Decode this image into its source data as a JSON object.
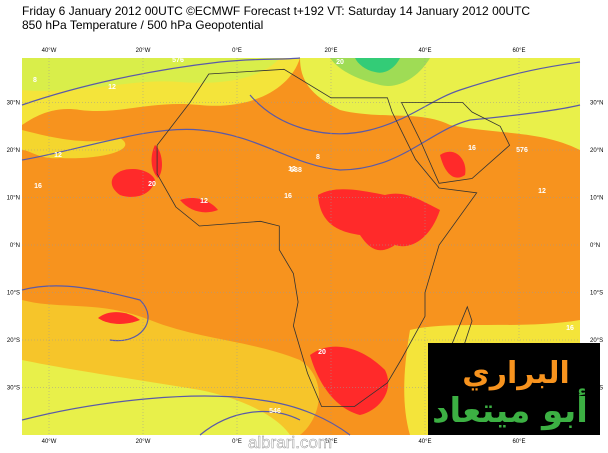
{
  "header": {
    "line1": "Friday 6 January 2012 00UTC ©ECMWF Forecast t+192 VT: Saturday 14 January 2012 00UTC",
    "line2": "850 hPa Temperature / 500 hPa Geopotential"
  },
  "map": {
    "longitudes": [
      "40°W",
      "20°W",
      "0°E",
      "20°E",
      "40°E",
      "60°E"
    ],
    "latitudes": [
      "30°N",
      "20°N",
      "10°N",
      "0°N",
      "10°S",
      "20°S",
      "30°S"
    ],
    "contour_labels": [
      "576",
      "8",
      "12",
      "16",
      "20",
      "12",
      "588",
      "16",
      "20",
      "576",
      "16",
      "12",
      "12",
      "20",
      "16",
      "12",
      "8",
      "546"
    ]
  },
  "watermark": {
    "logo_line1": "البراري",
    "logo_line2": "أبو ميتعاد",
    "site": "albrari.com"
  }
}
